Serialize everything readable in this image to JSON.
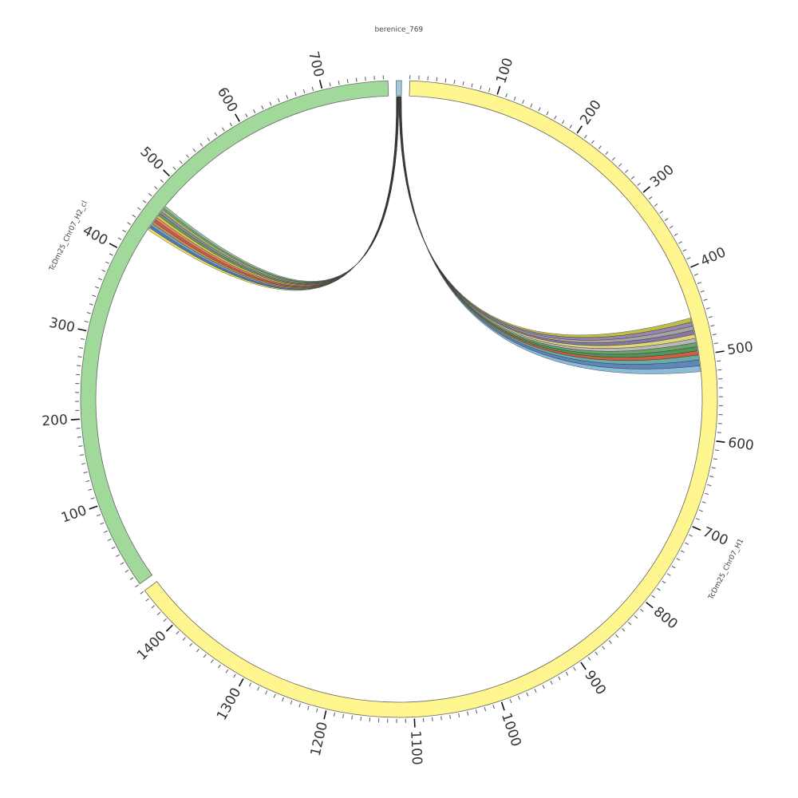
{
  "chart_data": {
    "type": "chord",
    "segments": [
      {
        "name": "berenice_769",
        "color": "#9ecae1",
        "length": 6
      },
      {
        "name": "TcDm25_Chr07_H1",
        "color": "#fff68f",
        "length": 1450,
        "ticks": [
          100,
          200,
          300,
          400,
          500,
          600,
          700,
          800,
          900,
          1000,
          1100,
          1200,
          1300,
          1400
        ]
      },
      {
        "name": "TcDm25_Chr07_H2_cl",
        "color": "#a1d99b",
        "length": 775,
        "ticks": [
          100,
          200,
          300,
          400,
          500,
          600,
          700
        ]
      }
    ],
    "minor_tick_step": 10,
    "links": [
      {
        "source": "berenice_769",
        "source_range": [
          3.0,
          3.25
        ],
        "target": "TcDm25_Chr07_H1",
        "target_range": [
          455,
          460
        ],
        "color": "#b8b832"
      },
      {
        "source": "berenice_769",
        "source_range": [
          3.25,
          3.5
        ],
        "target": "TcDm25_Chr07_H1",
        "target_range": [
          460,
          465
        ],
        "color": "#8e7aa6"
      },
      {
        "source": "berenice_769",
        "source_range": [
          3.5,
          3.75
        ],
        "target": "TcDm25_Chr07_H1",
        "target_range": [
          465,
          470
        ],
        "color": "#9a9a9a"
      },
      {
        "source": "berenice_769",
        "source_range": [
          3.75,
          4.0
        ],
        "target": "TcDm25_Chr07_H1",
        "target_range": [
          470,
          475
        ],
        "color": "#7a6a98"
      },
      {
        "source": "berenice_769",
        "source_range": [
          4.0,
          4.25
        ],
        "target": "TcDm25_Chr07_H1",
        "target_range": [
          475,
          480
        ],
        "color": "#d9d36a"
      },
      {
        "source": "berenice_769",
        "source_range": [
          4.25,
          4.5
        ],
        "target": "TcDm25_Chr07_H1",
        "target_range": [
          480,
          485
        ],
        "color": "#b0b0b0"
      },
      {
        "source": "berenice_769",
        "source_range": [
          4.5,
          4.75
        ],
        "target": "TcDm25_Chr07_H1",
        "target_range": [
          485,
          490
        ],
        "color": "#5a9a5a"
      },
      {
        "source": "berenice_769",
        "source_range": [
          4.75,
          5.0
        ],
        "target": "TcDm25_Chr07_H1",
        "target_range": [
          490,
          495
        ],
        "color": "#3d8a4a"
      },
      {
        "source": "berenice_769",
        "source_range": [
          5.0,
          5.25
        ],
        "target": "TcDm25_Chr07_H1",
        "target_range": [
          495,
          500
        ],
        "color": "#c8502a"
      },
      {
        "source": "berenice_769",
        "source_range": [
          5.25,
          5.5
        ],
        "target": "TcDm25_Chr07_H1",
        "target_range": [
          500,
          506
        ],
        "color": "#5aa0a0"
      },
      {
        "source": "berenice_769",
        "source_range": [
          5.5,
          5.75
        ],
        "target": "TcDm25_Chr07_H1",
        "target_range": [
          506,
          513
        ],
        "color": "#4a7ab0"
      },
      {
        "source": "berenice_769",
        "source_range": [
          5.75,
          6.0
        ],
        "target": "TcDm25_Chr07_H1",
        "target_range": [
          513,
          520
        ],
        "color": "#7fb3d5"
      },
      {
        "source": "berenice_769",
        "source_range": [
          0.0,
          0.25
        ],
        "target": "TcDm25_Chr07_H2_cl",
        "target_range": [
          436,
          439
        ],
        "color": "#f0d84a"
      },
      {
        "source": "berenice_769",
        "source_range": [
          0.25,
          0.5
        ],
        "target": "TcDm25_Chr07_H2_cl",
        "target_range": [
          439,
          442
        ],
        "color": "#3a6fb0"
      },
      {
        "source": "berenice_769",
        "source_range": [
          0.5,
          0.75
        ],
        "target": "TcDm25_Chr07_H2_cl",
        "target_range": [
          442,
          445
        ],
        "color": "#5aa0c8"
      },
      {
        "source": "berenice_769",
        "source_range": [
          0.75,
          1.0
        ],
        "target": "TcDm25_Chr07_H2_cl",
        "target_range": [
          445,
          448
        ],
        "color": "#d08030"
      },
      {
        "source": "berenice_769",
        "source_range": [
          1.0,
          1.25
        ],
        "target": "TcDm25_Chr07_H2_cl",
        "target_range": [
          448,
          451
        ],
        "color": "#c84a3a"
      },
      {
        "source": "berenice_769",
        "source_range": [
          1.25,
          1.5
        ],
        "target": "TcDm25_Chr07_H2_cl",
        "target_range": [
          451,
          454
        ],
        "color": "#e07a5a"
      },
      {
        "source": "berenice_769",
        "source_range": [
          1.5,
          1.75
        ],
        "target": "TcDm25_Chr07_H2_cl",
        "target_range": [
          454,
          457
        ],
        "color": "#d9c040"
      },
      {
        "source": "berenice_769",
        "source_range": [
          1.75,
          2.0
        ],
        "target": "TcDm25_Chr07_H2_cl",
        "target_range": [
          457,
          460
        ],
        "color": "#4a9a4a"
      },
      {
        "source": "berenice_769",
        "source_range": [
          2.0,
          2.25
        ],
        "target": "TcDm25_Chr07_H2_cl",
        "target_range": [
          460,
          463
        ],
        "color": "#8e7aa6"
      },
      {
        "source": "berenice_769",
        "source_range": [
          2.25,
          2.5
        ],
        "target": "TcDm25_Chr07_H2_cl",
        "target_range": [
          463,
          466
        ],
        "color": "#a0b050"
      },
      {
        "source": "berenice_769",
        "source_range": [
          2.5,
          2.75
        ],
        "target": "TcDm25_Chr07_H2_cl",
        "target_range": [
          466,
          468
        ],
        "color": "#6aa080"
      },
      {
        "source": "berenice_769",
        "source_range": [
          2.75,
          3.0
        ],
        "target": "TcDm25_Chr07_H2_cl",
        "target_range": [
          468,
          471
        ],
        "color": "#8ab88a"
      }
    ]
  }
}
